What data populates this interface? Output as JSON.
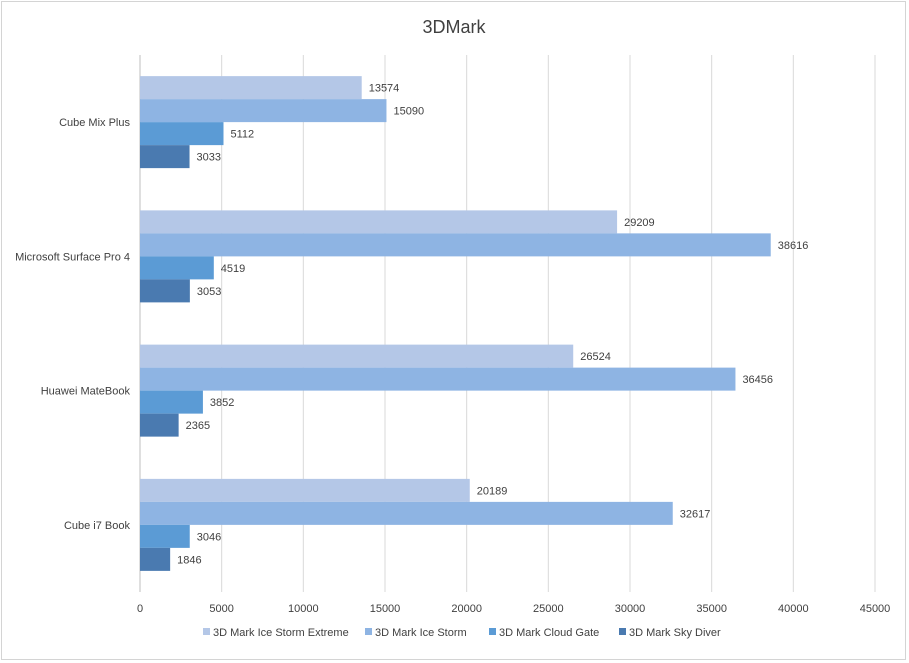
{
  "chart_data": {
    "type": "bar",
    "orientation": "horizontal",
    "title": "3DMark",
    "xlabel": "",
    "ylabel": "",
    "xlim": [
      0,
      45000
    ],
    "xticks": [
      0,
      5000,
      10000,
      15000,
      20000,
      25000,
      30000,
      35000,
      40000,
      45000
    ],
    "grid": true,
    "legend_position": "bottom",
    "categories": [
      "Cube Mix Plus",
      "Microsoft Surface Pro 4",
      "Huawei MateBook",
      "Cube i7 Book"
    ],
    "series": [
      {
        "name": "3D Mark Ice Storm Extreme",
        "color": "#b4c7e7",
        "values": [
          13574,
          29209,
          26524,
          20189
        ]
      },
      {
        "name": "3D Mark Ice Storm",
        "color": "#8eb4e3",
        "values": [
          15090,
          38616,
          36456,
          32617
        ]
      },
      {
        "name": "3D Mark Cloud Gate",
        "color": "#5b9bd5",
        "values": [
          5112,
          4519,
          3852,
          3046
        ]
      },
      {
        "name": "3D Mark Sky Diver",
        "color": "#4a7ab0",
        "values": [
          3033,
          3053,
          2365,
          1846
        ]
      }
    ]
  }
}
